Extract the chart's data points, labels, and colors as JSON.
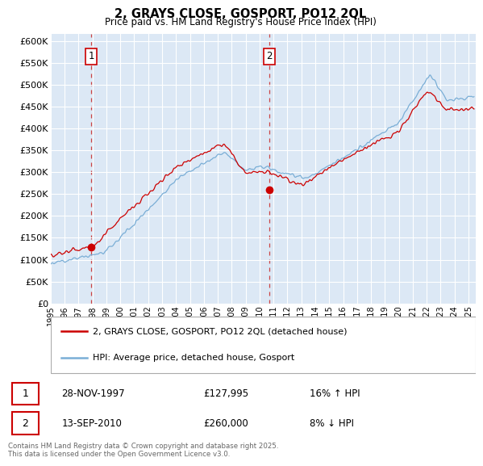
{
  "title": "2, GRAYS CLOSE, GOSPORT, PO12 2QL",
  "subtitle": "Price paid vs. HM Land Registry's House Price Index (HPI)",
  "ylabel_ticks": [
    "£0",
    "£50K",
    "£100K",
    "£150K",
    "£200K",
    "£250K",
    "£300K",
    "£350K",
    "£400K",
    "£450K",
    "£500K",
    "£550K",
    "£600K"
  ],
  "ytick_values": [
    0,
    50000,
    100000,
    150000,
    200000,
    250000,
    300000,
    350000,
    400000,
    450000,
    500000,
    550000,
    600000
  ],
  "ylim": [
    0,
    615000
  ],
  "xlim_start": 1995.0,
  "xlim_end": 2025.5,
  "xticks": [
    1995,
    1996,
    1997,
    1998,
    1999,
    2000,
    2001,
    2002,
    2003,
    2004,
    2005,
    2006,
    2007,
    2008,
    2009,
    2010,
    2011,
    2012,
    2013,
    2014,
    2015,
    2016,
    2017,
    2018,
    2019,
    2020,
    2021,
    2022,
    2023,
    2024,
    2025
  ],
  "purchase1_date": 1997.91,
  "purchase1_price": 127995,
  "purchase2_date": 2010.71,
  "purchase2_price": 260000,
  "hpi_line_color": "#7aaed6",
  "price_line_color": "#cc0000",
  "dot_color": "#cc0000",
  "vline_color": "#cc4444",
  "legend_entry1": "2, GRAYS CLOSE, GOSPORT, PO12 2QL (detached house)",
  "legend_entry2": "HPI: Average price, detached house, Gosport",
  "footer": "Contains HM Land Registry data © Crown copyright and database right 2025.\nThis data is licensed under the Open Government Licence v3.0.",
  "background_color": "#dce8f5",
  "plot_bg_color": "#dce8f5",
  "grid_color": "#ffffff",
  "label_box_color": "#cc0000",
  "n_points": 700
}
